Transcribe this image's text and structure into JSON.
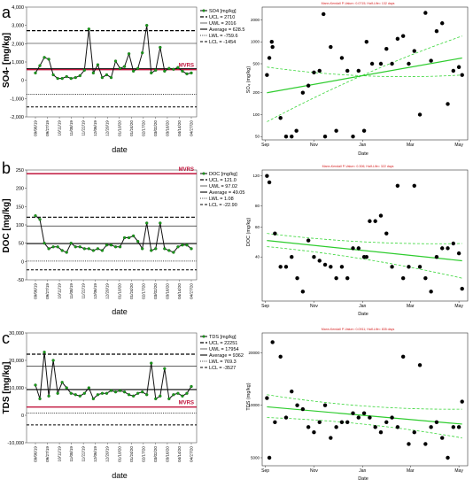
{
  "chart_data": [
    {
      "type": "line",
      "panel_letter": "a",
      "ylabel": "SO4- [mg/kg]",
      "xlabel": "date",
      "yticks": [
        "-2,000",
        "-1,000",
        "0",
        "1,000",
        "2,000",
        "3,000",
        "4,000"
      ],
      "ylim": [
        -2000,
        4000
      ],
      "x": [
        "09/06/19",
        "09/13/19",
        "09/20/19",
        "09/27/19",
        "10/04/19",
        "10/11/19",
        "10/18/19",
        "10/25/19",
        "11/01/19",
        "11/08/19",
        "11/15/19",
        "11/22/19",
        "11/29/19",
        "12/06/19",
        "12/13/19",
        "12/20/19",
        "12/27/19",
        "01/03/20",
        "01/10/20",
        "01/17/20",
        "01/24/20",
        "01/31/20",
        "02/07/20",
        "02/14/20",
        "02/21/20",
        "02/28/20",
        "03/06/20",
        "03/13/20",
        "03/20/20",
        "03/27/20",
        "04/03/20",
        "04/10/20",
        "04/17/20",
        "04/24/20",
        "05/01/20",
        "05/08/20"
      ],
      "xtick_labels": [
        "09/06/19",
        "09/27/19",
        "10/11/19",
        "11/08/19",
        "11/22/19",
        "12/06/19",
        "12/20/19",
        "01/10/20",
        "01/24/20",
        "02/17/20",
        "03/02/20",
        "03/16/20",
        "04/14/20",
        "04/27/20"
      ],
      "values": [
        400,
        800,
        1250,
        1150,
        300,
        100,
        100,
        200,
        100,
        150,
        250,
        550,
        2800,
        400,
        850,
        150,
        300,
        150,
        1050,
        650,
        750,
        1450,
        500,
        650,
        1500,
        3000,
        400,
        550,
        1800,
        500,
        650,
        600,
        700,
        500,
        350,
        400
      ],
      "lines": {
        "ucl": 2710,
        "uwl": 2016,
        "average": 628.5,
        "lwl": -759.6,
        "lcl": -1454,
        "mvrs": 580
      },
      "mvrs_label": "MVRS",
      "legend": [
        "SO4 [mg/kg]",
        "UCL = 2710",
        "UWL = 2016",
        "Average = 628.5",
        "LWL = -759.6",
        "LCL = -1454"
      ]
    },
    {
      "type": "line",
      "panel_letter": "b",
      "ylabel": "DOC [mg/kg]",
      "xlabel": "date",
      "yticks": [
        "-50",
        "0",
        "50",
        "100",
        "150",
        "200",
        "250"
      ],
      "ylim": [
        -50,
        250
      ],
      "x": [
        "09/06/19",
        "09/13/19",
        "09/20/19",
        "09/27/19",
        "10/04/19",
        "10/11/19",
        "10/18/19",
        "10/25/19",
        "11/01/19",
        "11/08/19",
        "11/15/19",
        "11/22/19",
        "11/29/19",
        "12/06/19",
        "12/13/19",
        "12/20/19",
        "12/27/19",
        "01/03/20",
        "01/10/20",
        "01/17/20",
        "01/24/20",
        "01/31/20",
        "02/07/20",
        "02/14/20",
        "02/21/20",
        "02/28/20",
        "03/06/20",
        "03/13/20",
        "03/20/20",
        "03/27/20",
        "04/03/20",
        "04/10/20",
        "04/17/20",
        "04/24/20",
        "05/01/20",
        "05/08/20"
      ],
      "xtick_labels": [
        "09/06/19",
        "09/27/19",
        "10/11/19",
        "11/08/19",
        "11/22/19",
        "12/06/19",
        "12/20/19",
        "01/10/20",
        "01/24/20",
        "02/17/20",
        "03/02/20",
        "03/16/20",
        "04/14/20",
        "04/27/20"
      ],
      "values": [
        125,
        115,
        50,
        35,
        40,
        40,
        30,
        25,
        50,
        40,
        40,
        35,
        35,
        30,
        35,
        30,
        45,
        45,
        40,
        40,
        65,
        65,
        70,
        55,
        35,
        105,
        30,
        35,
        105,
        35,
        30,
        25,
        40,
        45,
        45,
        35
      ],
      "lines": {
        "ucl": 121.0,
        "uwl": 97.02,
        "average": 49.05,
        "lwl": 1.08,
        "lcl": -22.9,
        "mvrs": 240
      },
      "mvrs_label": "MVRS",
      "legend": [
        "DOC [mg/kg]",
        "UCL = 121.0",
        "UWL = 97.02",
        "Average = 49.05",
        "LWL = 1.08",
        "LCL = -22.90"
      ]
    },
    {
      "type": "line",
      "panel_letter": "c",
      "ylabel": "TDS [mg/kg]",
      "xlabel": "date",
      "yticks": [
        "-10,000",
        "0",
        "10,000",
        "20,000",
        "30,000"
      ],
      "ylim": [
        -10000,
        30000
      ],
      "x": [
        "09/06/19",
        "09/13/19",
        "09/20/19",
        "09/27/19",
        "10/04/19",
        "10/11/19",
        "10/18/19",
        "10/25/19",
        "11/01/19",
        "11/08/19",
        "11/15/19",
        "11/22/19",
        "11/29/19",
        "12/06/19",
        "12/13/19",
        "12/20/19",
        "12/27/19",
        "01/03/20",
        "01/10/20",
        "01/17/20",
        "01/24/20",
        "01/31/20",
        "02/07/20",
        "02/14/20",
        "02/21/20",
        "02/28/20",
        "03/06/20",
        "03/13/20",
        "03/20/20",
        "03/27/20",
        "04/03/20",
        "04/10/20",
        "04/17/20",
        "04/24/20",
        "05/01/20",
        "05/08/20"
      ],
      "xtick_labels": [
        "09/06/19",
        "09/27/19",
        "10/11/19",
        "11/08/19",
        "11/22/19",
        "12/06/19",
        "12/20/19",
        "01/10/20",
        "01/24/20",
        "02/17/20",
        "03/02/20",
        "03/16/20",
        "04/14/20",
        "04/27/20"
      ],
      "values": [
        11000,
        6000,
        23000,
        7000,
        20000,
        8000,
        12000,
        10000,
        8000,
        7500,
        7000,
        8000,
        10000,
        6000,
        7500,
        8000,
        8000,
        9000,
        8500,
        9000,
        8500,
        7500,
        7000,
        8000,
        8500,
        7500,
        19000,
        6000,
        7000,
        17000,
        6000,
        7500,
        8000,
        7000,
        8000,
        10500
      ],
      "lines": {
        "ucl": 22251,
        "uwl": 17954,
        "average": 9362,
        "lwl": 769.3,
        "lcl": -3527,
        "mvrs": 3000
      },
      "mvrs_label": "MVRS",
      "legend": [
        "TDS [mg/kg]",
        "UCL = 22251",
        "UWL = 17954",
        "Average = 9362",
        "LWL = 769.3",
        "LCL = -3527"
      ]
    },
    {
      "type": "scatter",
      "title": "Mann-Kendall P-Value= 0.0715; Half-Life= 132 days",
      "ylabel": "SO₄ (mg/kg)",
      "xlabel": "Date",
      "xticks": [
        "Sep",
        "Nov",
        "Jan",
        "Mar",
        "May"
      ],
      "yticks": [
        "50",
        "100",
        "200",
        "500",
        "1000",
        "2000"
      ],
      "yscale": "log",
      "ylim": [
        45,
        3000
      ],
      "x": [
        "2019-09-03",
        "2019-09-06",
        "2019-09-09",
        "2019-09-10",
        "2019-09-20",
        "2019-09-27",
        "2019-10-04",
        "2019-10-10",
        "2019-10-18",
        "2019-10-25",
        "2019-11-01",
        "2019-11-08",
        "2019-11-13",
        "2019-11-15",
        "2019-11-22",
        "2019-11-29",
        "2019-12-06",
        "2019-12-13",
        "2019-12-20",
        "2019-12-27",
        "2020-01-03",
        "2020-01-06",
        "2020-01-13",
        "2020-01-24",
        "2020-01-31",
        "2020-02-07",
        "2020-02-14",
        "2020-02-21",
        "2020-02-28",
        "2020-03-06",
        "2020-03-13",
        "2020-03-20",
        "2020-03-27",
        "2020-04-03",
        "2020-04-10",
        "2020-04-17",
        "2020-04-24",
        "2020-05-01",
        "2020-05-05"
      ],
      "values": [
        350,
        600,
        1000,
        850,
        90,
        50,
        50,
        60,
        200,
        250,
        380,
        400,
        2400,
        50,
        850,
        60,
        600,
        400,
        50,
        400,
        60,
        1000,
        500,
        500,
        800,
        500,
        1100,
        1200,
        500,
        750,
        100,
        2500,
        550,
        1400,
        1800,
        140,
        400,
        450,
        350
      ],
      "trend": {
        "start": [
          "2019-09-03",
          200
        ],
        "end": [
          "2020-05-05",
          600
        ]
      },
      "band_upper": {
        "start": [
          "2019-09-03",
          80
        ],
        "end": [
          "2020-05-05",
          1200
        ]
      },
      "band_lower": {
        "start": [
          "2019-09-03",
          450
        ],
        "end": [
          "2020-05-05",
          350
        ]
      }
    },
    {
      "type": "scatter",
      "title": "Mann-Kendall P-Value= 0.306; Half-Life= 322 days",
      "ylabel": "DOC (mg/kg)",
      "xlabel": "Date",
      "xticks": [
        "Sep",
        "Nov",
        "Jan",
        "Mar",
        "May"
      ],
      "yticks": [
        "40",
        "60",
        "80",
        "120"
      ],
      "yscale": "log",
      "ylim": [
        22,
        130
      ],
      "x": [
        "2019-09-03",
        "2019-09-06",
        "2019-09-13",
        "2019-09-20",
        "2019-09-27",
        "2019-10-04",
        "2019-10-11",
        "2019-10-18",
        "2019-10-25",
        "2019-11-01",
        "2019-11-08",
        "2019-11-15",
        "2019-11-22",
        "2019-11-29",
        "2019-12-06",
        "2019-12-13",
        "2019-12-20",
        "2019-12-27",
        "2020-01-03",
        "2020-01-06",
        "2020-01-10",
        "2020-01-17",
        "2020-01-24",
        "2020-01-31",
        "2020-02-07",
        "2020-02-14",
        "2020-02-21",
        "2020-02-28",
        "2020-03-06",
        "2020-03-13",
        "2020-03-20",
        "2020-03-27",
        "2020-04-03",
        "2020-04-10",
        "2020-04-17",
        "2020-04-24",
        "2020-05-01",
        "2020-05-05"
      ],
      "values": [
        120,
        110,
        55,
        35,
        35,
        40,
        30,
        25,
        50,
        40,
        38,
        36,
        35,
        30,
        35,
        30,
        45,
        45,
        40,
        40,
        65,
        65,
        70,
        55,
        35,
        105,
        30,
        35,
        105,
        35,
        30,
        25,
        40,
        45,
        45,
        48,
        42,
        26
      ],
      "trend": {
        "start": [
          "2019-09-03",
          50
        ],
        "end": [
          "2020-05-05",
          38
        ]
      },
      "band_upper": {
        "start": [
          "2019-09-03",
          55
        ],
        "end": [
          "2020-05-05",
          48
        ]
      },
      "band_lower": {
        "start": [
          "2019-09-03",
          46
        ],
        "end": [
          "2020-05-05",
          30
        ]
      }
    },
    {
      "type": "scatter",
      "title": "Mann-Kendall P-Value= 0.0911; Half-Life= 835 days",
      "ylabel": "TDS (mg/kg)",
      "xlabel": "Date",
      "xticks": [
        "Sep",
        "Nov",
        "Jan",
        "Mar",
        "May"
      ],
      "yticks": [
        "5000",
        "10000",
        "20000"
      ],
      "yscale": "log",
      "ylim": [
        4500,
        26000
      ],
      "x": [
        "2019-09-03",
        "2019-09-06",
        "2019-09-10",
        "2019-09-13",
        "2019-09-20",
        "2019-09-27",
        "2019-10-04",
        "2019-10-11",
        "2019-10-18",
        "2019-10-25",
        "2019-11-01",
        "2019-11-08",
        "2019-11-15",
        "2019-11-22",
        "2019-11-29",
        "2019-12-06",
        "2019-12-13",
        "2019-12-20",
        "2019-12-27",
        "2020-01-03",
        "2020-01-10",
        "2020-01-17",
        "2020-01-24",
        "2020-01-31",
        "2020-02-07",
        "2020-02-14",
        "2020-02-21",
        "2020-02-28",
        "2020-03-06",
        "2020-03-13",
        "2020-03-20",
        "2020-03-27",
        "2020-04-03",
        "2020-04-10",
        "2020-04-17",
        "2020-04-24",
        "2020-05-01",
        "2020-05-05"
      ],
      "values": [
        11000,
        5000,
        23000,
        8000,
        19000,
        8500,
        12000,
        10000,
        9500,
        7500,
        7000,
        8000,
        10000,
        6500,
        7500,
        8000,
        8000,
        9000,
        8500,
        9000,
        8500,
        7500,
        7000,
        8000,
        8500,
        7500,
        19000,
        6000,
        7000,
        17000,
        6000,
        7500,
        8000,
        6500,
        5000,
        7500,
        7500,
        10500
      ],
      "trend": {
        "start": [
          "2019-09-03",
          9800
        ],
        "end": [
          "2020-05-05",
          7800
        ]
      },
      "band_upper": {
        "start": [
          "2019-09-03",
          11500
        ],
        "end": [
          "2020-05-05",
          9500
        ]
      },
      "band_lower": {
        "start": [
          "2019-09-03",
          8500
        ],
        "end": [
          "2020-05-05",
          6500
        ]
      }
    }
  ]
}
